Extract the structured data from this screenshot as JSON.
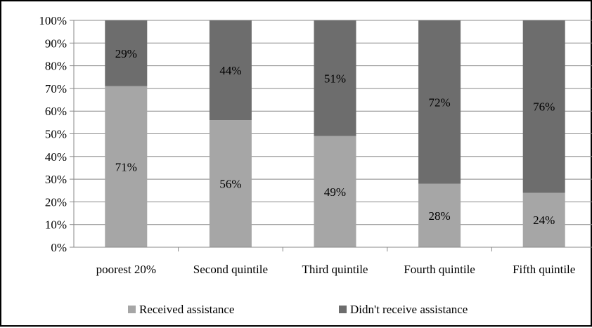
{
  "chart_data": {
    "type": "bar",
    "stacked": true,
    "percent_stacked": true,
    "categories": [
      "poorest 20%",
      "Second quintile",
      "Third quintile",
      "Fourth quintile",
      "Fifth quintile"
    ],
    "series": [
      {
        "name": "Received assistance",
        "values": [
          71,
          56,
          49,
          28,
          24
        ],
        "color": "#a6a6a6",
        "labels": [
          "71%",
          "56%",
          "49%",
          "28%",
          "24%"
        ]
      },
      {
        "name": "Didn't receive assistance",
        "values": [
          29,
          44,
          51,
          72,
          76
        ],
        "color": "#6d6d6d",
        "labels": [
          "29%",
          "44%",
          "51%",
          "72%",
          "76%"
        ]
      }
    ],
    "y_ticks": [
      "0%",
      "10%",
      "20%",
      "30%",
      "40%",
      "50%",
      "60%",
      "70%",
      "80%",
      "90%",
      "100%"
    ],
    "ylim": [
      0,
      100
    ],
    "grid": true,
    "gridline_color": "#888888",
    "legend_position": "bottom",
    "title": "",
    "xlabel": "",
    "ylabel": ""
  }
}
